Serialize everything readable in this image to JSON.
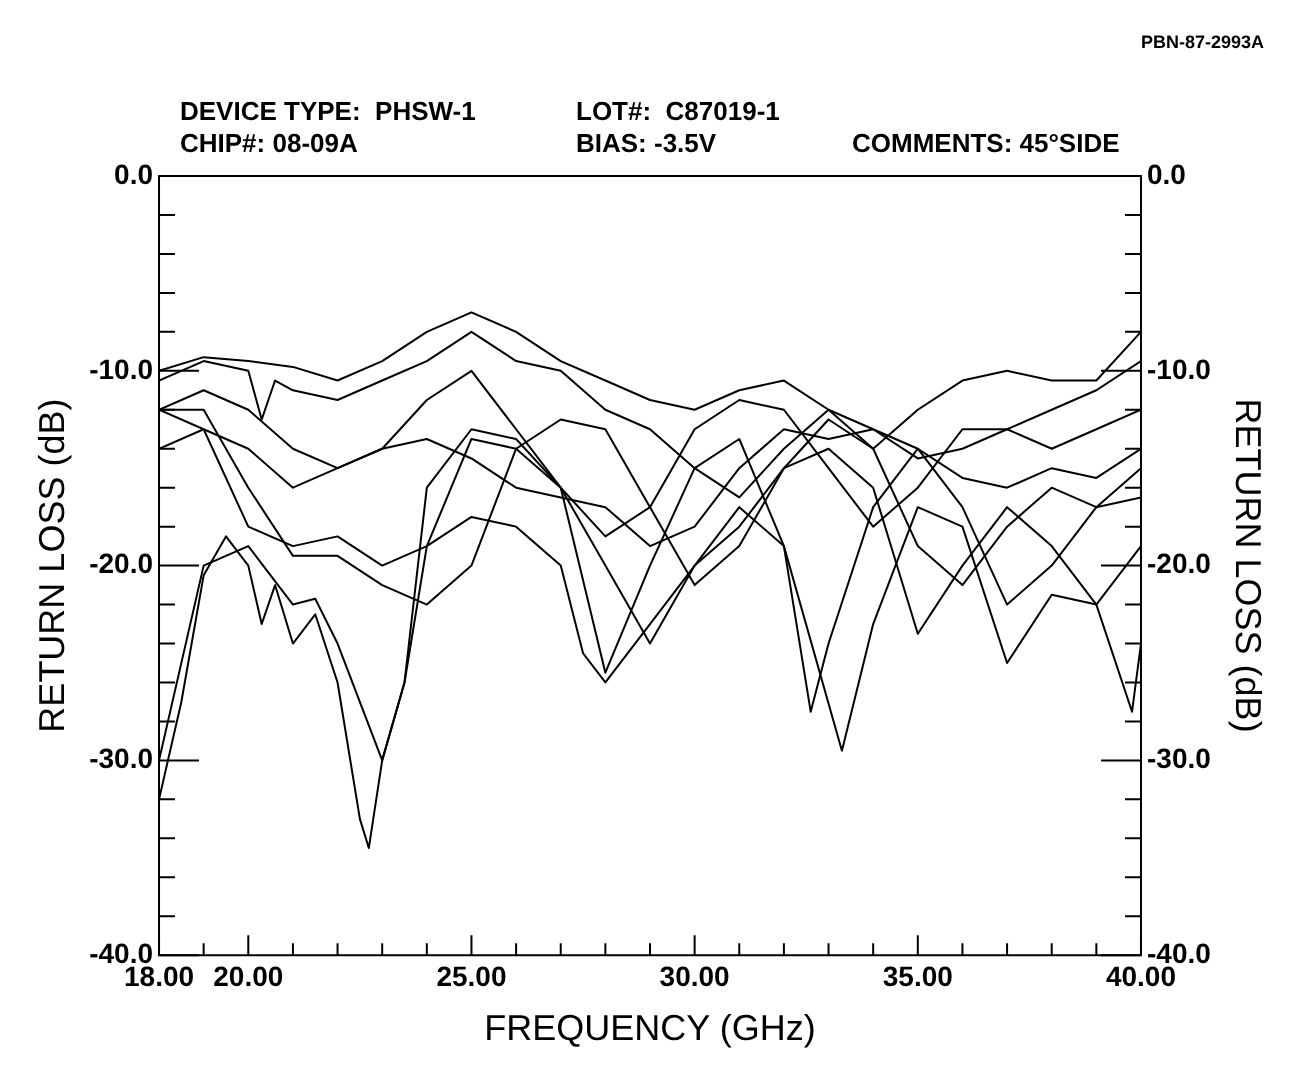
{
  "chart_data": {
    "type": "line",
    "xlabel": "FREQUENCY (GHz)",
    "ylabel": "RETURN LOSS (dB)",
    "y2label": "RETURN LOSS (dB)",
    "annotations": [
      "PBN-87-2993A",
      "DEVICE TYPE:  PHSW-1",
      "LOT#:  C87019-1",
      "CHIP#: 08-09A",
      "BIAS: -3.5V",
      "COMMENTS: 45°SIDE"
    ],
    "xlim": [
      18,
      40
    ],
    "xticks": [
      {
        "value": 18,
        "label": "18.00"
      },
      {
        "value": 19,
        "label": null
      },
      {
        "value": 20,
        "label": "20.00"
      },
      {
        "value": 21,
        "label": null
      },
      {
        "value": 22,
        "label": null
      },
      {
        "value": 23,
        "label": null
      },
      {
        "value": 24,
        "label": null
      },
      {
        "value": 25,
        "label": "25.00"
      },
      {
        "value": 26,
        "label": null
      },
      {
        "value": 27,
        "label": null
      },
      {
        "value": 28,
        "label": null
      },
      {
        "value": 29,
        "label": null
      },
      {
        "value": 30,
        "label": "30.00"
      },
      {
        "value": 31,
        "label": null
      },
      {
        "value": 32,
        "label": null
      },
      {
        "value": 33,
        "label": null
      },
      {
        "value": 34,
        "label": null
      },
      {
        "value": 35,
        "label": "35.00"
      },
      {
        "value": 36,
        "label": null
      },
      {
        "value": 37,
        "label": null
      },
      {
        "value": 38,
        "label": null
      },
      {
        "value": 39,
        "label": null
      },
      {
        "value": 40,
        "label": "40.00"
      }
    ],
    "ylim": [
      -40,
      0
    ],
    "yticks": [
      {
        "value": -40,
        "label": "-40.0"
      },
      {
        "value": -38,
        "label": null
      },
      {
        "value": -36,
        "label": null
      },
      {
        "value": -34,
        "label": null
      },
      {
        "value": -32,
        "label": null
      },
      {
        "value": -30,
        "label": "-30.0"
      },
      {
        "value": -28,
        "label": null
      },
      {
        "value": -26,
        "label": null
      },
      {
        "value": -24,
        "label": null
      },
      {
        "value": -22,
        "label": null
      },
      {
        "value": -20,
        "label": "-20.0"
      },
      {
        "value": -18,
        "label": null
      },
      {
        "value": -16,
        "label": null
      },
      {
        "value": -14,
        "label": null
      },
      {
        "value": -12,
        "label": null
      },
      {
        "value": -10,
        "label": "-10.0"
      },
      {
        "value": -8,
        "label": null
      },
      {
        "value": -6,
        "label": null
      },
      {
        "value": -4,
        "label": null
      },
      {
        "value": -2,
        "label": null
      },
      {
        "value": 0,
        "label": "0.0"
      }
    ],
    "y2lim": [
      -40,
      0
    ],
    "y2ticks": [
      {
        "value": -40,
        "label": "-40.0"
      },
      {
        "value": -38,
        "label": null
      },
      {
        "value": -36,
        "label": null
      },
      {
        "value": -34,
        "label": null
      },
      {
        "value": -32,
        "label": null
      },
      {
        "value": -30,
        "label": "-30.0"
      },
      {
        "value": -28,
        "label": null
      },
      {
        "value": -26,
        "label": null
      },
      {
        "value": -24,
        "label": null
      },
      {
        "value": -22,
        "label": null
      },
      {
        "value": -20,
        "label": "-20.0"
      },
      {
        "value": -18,
        "label": null
      },
      {
        "value": -16,
        "label": null
      },
      {
        "value": -14,
        "label": null
      },
      {
        "value": -12,
        "label": null
      },
      {
        "value": -10,
        "label": "-10.0"
      },
      {
        "value": -8,
        "label": null
      },
      {
        "value": -6,
        "label": null
      },
      {
        "value": -4,
        "label": null
      },
      {
        "value": -2,
        "label": null
      },
      {
        "value": 0,
        "label": "0.0"
      }
    ],
    "grid": false,
    "legend": false,
    "marker": "none",
    "line_style": "solid",
    "series": [
      {
        "color": "#000000",
        "x": [
          18,
          19,
          20,
          21,
          22,
          23,
          24,
          25,
          26,
          27,
          28,
          29,
          30,
          31,
          32,
          33,
          34,
          35,
          36,
          37,
          38,
          39,
          40
        ],
        "values": [
          -10,
          -9.3,
          -9.5,
          -9.8,
          -10.5,
          -9.5,
          -8,
          -7,
          -8,
          -9.5,
          -10.5,
          -11.5,
          -12,
          -11,
          -10.5,
          -12,
          -14,
          -12,
          -10.5,
          -10,
          -10.5,
          -10.5,
          -8
        ]
      },
      {
        "color": "#000000",
        "x": [
          18,
          19,
          20,
          20.3,
          20.6,
          21,
          22,
          23,
          24,
          25,
          26,
          27,
          28,
          29,
          30,
          31,
          32,
          33,
          34,
          35,
          36,
          37,
          38,
          39,
          40
        ],
        "values": [
          -10.5,
          -9.5,
          -10,
          -12.5,
          -10.5,
          -11,
          -11.5,
          -10.5,
          -9.5,
          -8,
          -9.5,
          -10,
          -12,
          -13,
          -15,
          -16.5,
          -14,
          -12,
          -13,
          -14.5,
          -14,
          -13,
          -12,
          -11,
          -9.5
        ]
      },
      {
        "color": "#000000",
        "x": [
          18,
          19,
          20,
          21,
          22,
          23,
          24,
          25,
          26,
          27,
          28,
          29,
          30,
          31,
          32,
          33,
          34,
          35,
          36,
          37,
          38,
          39,
          40
        ],
        "values": [
          -12,
          -11,
          -12,
          -14,
          -15,
          -14,
          -11.5,
          -10,
          -13,
          -16,
          -18.5,
          -17,
          -13,
          -11.5,
          -12,
          -15,
          -18,
          -16,
          -13,
          -13,
          -14,
          -13,
          -12
        ]
      },
      {
        "color": "#000000",
        "x": [
          18,
          19,
          20,
          21,
          22,
          23,
          24,
          25,
          26,
          27,
          28,
          29,
          30,
          31,
          32,
          33,
          34,
          35,
          36,
          37,
          38,
          39,
          40
        ],
        "values": [
          -14,
          -13,
          -14,
          -16,
          -15,
          -14,
          -13.5,
          -14.5,
          -16,
          -16.5,
          -17,
          -19,
          -18,
          -15,
          -13,
          -13.5,
          -13,
          -14,
          -15.5,
          -16,
          -15,
          -15.5,
          -14
        ]
      },
      {
        "color": "#000000",
        "x": [
          18,
          19,
          20,
          21,
          22,
          23,
          24,
          25,
          26,
          27,
          28,
          29,
          30,
          31,
          32,
          33,
          34,
          35,
          36,
          37,
          38,
          39,
          40
        ],
        "values": [
          -12,
          -12,
          -16,
          -19.5,
          -19.5,
          -21,
          -22,
          -20,
          -14,
          -12.5,
          -13,
          -17,
          -21,
          -19,
          -15,
          -12.5,
          -14,
          -19,
          -21,
          -18,
          -16,
          -17,
          -16.5
        ]
      },
      {
        "color": "#000000",
        "x": [
          18,
          19,
          20,
          21,
          22,
          23,
          24,
          25,
          26,
          27,
          27.5,
          28,
          29,
          30,
          31,
          32,
          32.6,
          33,
          34,
          35,
          36,
          37,
          38,
          39,
          40
        ],
        "values": [
          -12,
          -13,
          -18,
          -19,
          -18.5,
          -20,
          -19,
          -17.5,
          -18,
          -20,
          -24.5,
          -26,
          -23,
          -20,
          -17,
          -19,
          -27.5,
          -24,
          -17,
          -14,
          -17,
          -22,
          -20,
          -17,
          -15
        ]
      },
      {
        "color": "#000000",
        "x": [
          18,
          18.5,
          19,
          19.5,
          20,
          20.3,
          20.6,
          21,
          21.5,
          22,
          22.5,
          22.7,
          23,
          23.5,
          24,
          25,
          26,
          27,
          28,
          29,
          30,
          31,
          32,
          33.3,
          34,
          35,
          36,
          37,
          38,
          39,
          40
        ],
        "values": [
          -32,
          -27,
          -20.5,
          -18.5,
          -20,
          -23,
          -21,
          -24,
          -22.5,
          -26,
          -33,
          -34.5,
          -30,
          -26,
          -16,
          -13,
          -13.5,
          -16,
          -25.5,
          -20,
          -15,
          -13.5,
          -19,
          -29.5,
          -23,
          -17,
          -18,
          -25,
          -21.5,
          -22,
          -19
        ]
      },
      {
        "color": "#000000",
        "x": [
          18,
          19,
          20,
          21,
          21.5,
          22,
          23,
          23.5,
          24,
          25,
          26,
          27,
          28,
          29,
          30,
          31,
          32,
          33,
          34,
          35,
          36,
          37,
          38,
          39,
          39.8,
          40
        ],
        "values": [
          -30,
          -20,
          -19,
          -22,
          -21.7,
          -24,
          -30,
          -26,
          -19,
          -13.5,
          -14,
          -16,
          -20,
          -24,
          -20,
          -18,
          -15,
          -14,
          -16,
          -23.5,
          -20,
          -17,
          -19,
          -22,
          -27.5,
          -24
        ]
      }
    ]
  }
}
